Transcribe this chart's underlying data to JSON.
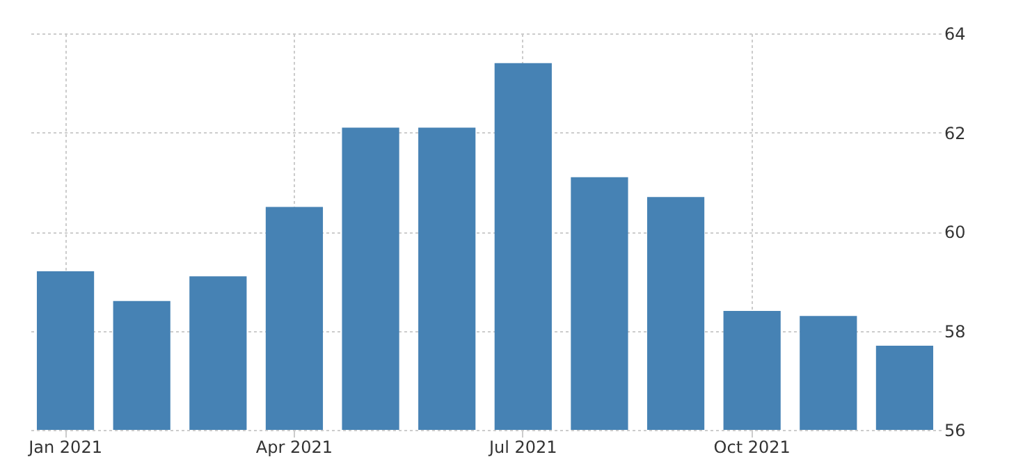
{
  "chart_data": {
    "type": "bar",
    "categories": [
      "Jan 2021",
      null,
      null,
      "Apr 2021",
      null,
      null,
      "Jul 2021",
      null,
      null,
      "Oct 2021",
      null,
      null
    ],
    "values": [
      59.2,
      58.6,
      59.1,
      60.5,
      62.1,
      62.1,
      63.4,
      61.1,
      60.7,
      58.4,
      58.3,
      57.7
    ],
    "color": "#4682b4",
    "ylim": [
      56,
      64
    ],
    "yticks": [
      56,
      58,
      60,
      62,
      64
    ],
    "grid": true
  }
}
